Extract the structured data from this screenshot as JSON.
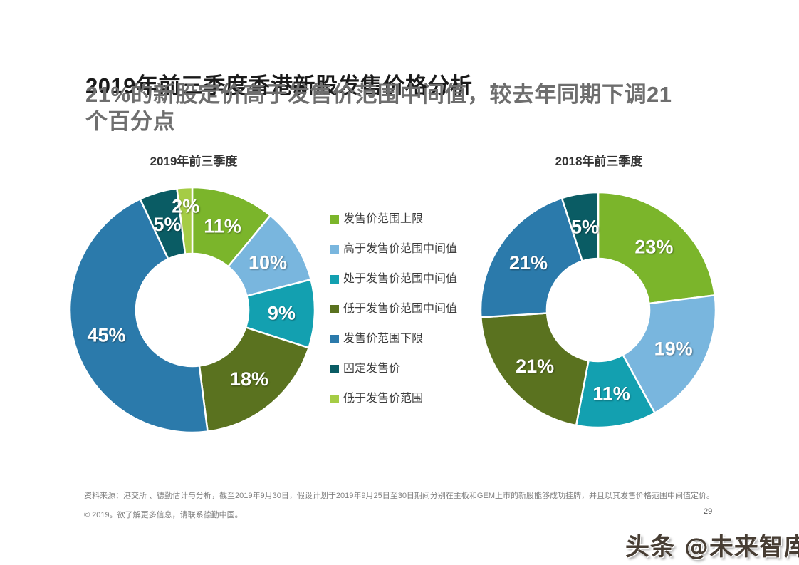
{
  "page": {
    "title": "2019年前三季度香港新股发售价格分析",
    "subtitle_lines": [
      "21%的新股定价高于发售价范围中间值，较去年同期下调21",
      "个百分点"
    ],
    "source_note": "资料来源：港交所 、德勤估计与分析，截至2019年9月30日，假设计划于2019年9月25日至30日期间分别在主板和GEM上市的新股能够成功挂牌，并且以其发售价格范围中间值定价。",
    "copyright": "© 2019。欲了解更多信息，请联系德勤中国。",
    "page_number": "29",
    "watermark": "头条 @未来智库"
  },
  "legend": {
    "items": [
      {
        "label": "发售价范围上限",
        "color": "#7BB52B"
      },
      {
        "label": "高于发售价范围中间值",
        "color": "#79B6DE"
      },
      {
        "label": "处于发售价范围中间值",
        "color": "#13A0B0"
      },
      {
        "label": "低于发售价范围中间值",
        "color": "#5A721F"
      },
      {
        "label": "发售价范围下限",
        "color": "#2B7AAB"
      },
      {
        "label": "固定发售价",
        "color": "#0A5C64"
      },
      {
        "label": "低于发售价范围",
        "color": "#A5CC45"
      }
    ]
  },
  "chart_data": [
    {
      "type": "pie",
      "donut": true,
      "title": "2019年前三季度",
      "categories": [
        "发售价范围上限",
        "高于发售价范围中间值",
        "处于发售价范围中间值",
        "低于发售价范围中间值",
        "发售价范围下限",
        "固定发售价",
        "低于发售价范围"
      ],
      "values": [
        11,
        10,
        9,
        18,
        45,
        5,
        2
      ],
      "labels": [
        "11%",
        "10%",
        "9%",
        "18%",
        "45%",
        "5%",
        "2%"
      ],
      "colors": [
        "#7BB52B",
        "#79B6DE",
        "#13A0B0",
        "#5A721F",
        "#2B7AAB",
        "#0A5C64",
        "#A5CC45"
      ],
      "unit": "%",
      "start_angle_deg": 0,
      "direction": "clockwise",
      "legend_position": "center"
    },
    {
      "type": "pie",
      "donut": true,
      "title": "2018年前三季度",
      "categories": [
        "发售价范围上限",
        "高于发售价范围中间值",
        "处于发售价范围中间值",
        "低于发售价范围中间值",
        "发售价范围下限",
        "固定发售价",
        "低于发售价范围"
      ],
      "values": [
        23,
        19,
        11,
        21,
        21,
        5,
        0
      ],
      "labels": [
        "23%",
        "19%",
        "11%",
        "21%",
        "21%",
        "5%",
        ""
      ],
      "colors": [
        "#7BB52B",
        "#79B6DE",
        "#13A0B0",
        "#5A721F",
        "#2B7AAB",
        "#0A5C64",
        "#A5CC45"
      ],
      "unit": "%",
      "start_angle_deg": 0,
      "direction": "clockwise",
      "legend_position": "center"
    }
  ]
}
